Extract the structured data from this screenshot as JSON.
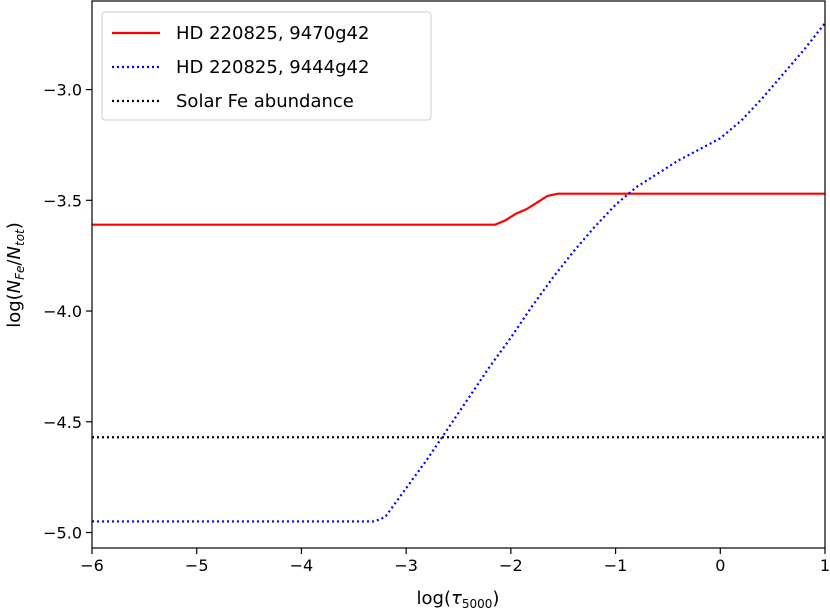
{
  "chart_data": {
    "type": "line",
    "xlabel": "log(τ5000)",
    "ylabel": "log(NFe/Ntot)",
    "xlim": [
      -6,
      1
    ],
    "ylim": [
      -5.07,
      -2.6
    ],
    "x_ticks": [
      -6,
      -5,
      -4,
      -3,
      -2,
      -1,
      0,
      1
    ],
    "y_ticks": [
      -5.0,
      -4.5,
      -4.0,
      -3.5,
      -3.0
    ],
    "x_tick_labels": [
      "−6",
      "−5",
      "−4",
      "−3",
      "−2",
      "−1",
      "0",
      "1"
    ],
    "y_tick_labels": [
      "−5.0",
      "−4.5",
      "−4.0",
      "−3.5",
      "−3.0"
    ],
    "grid": false,
    "legend_position": "top-left",
    "series": [
      {
        "name": "HD 220825, 9470g42",
        "color": "#ff0000",
        "style": "solid",
        "x": [
          -6,
          -2.15,
          -2.05,
          -1.95,
          -1.85,
          -1.75,
          -1.65,
          -1.55,
          0,
          1
        ],
        "y": [
          -3.61,
          -3.61,
          -3.59,
          -3.56,
          -3.54,
          -3.51,
          -3.48,
          -3.47,
          -3.47,
          -3.47
        ]
      },
      {
        "name": "HD 220825, 9444g42",
        "color": "#0000ff",
        "style": "dotted",
        "x": [
          -6,
          -3.3,
          -3.2,
          -3.0,
          -2.8,
          -2.6,
          -2.4,
          -2.2,
          -2.0,
          -1.8,
          -1.6,
          -1.4,
          -1.2,
          -1.0,
          -0.8,
          -0.6,
          -0.4,
          -0.2,
          0.0,
          0.2,
          0.4,
          0.6,
          0.8,
          1.0
        ],
        "y": [
          -4.95,
          -4.95,
          -4.93,
          -4.8,
          -4.67,
          -4.53,
          -4.39,
          -4.25,
          -4.12,
          -3.98,
          -3.85,
          -3.73,
          -3.62,
          -3.52,
          -3.44,
          -3.38,
          -3.32,
          -3.27,
          -3.22,
          -3.14,
          -3.04,
          -2.93,
          -2.82,
          -2.7
        ]
      },
      {
        "name": "Solar Fe abundance",
        "color": "#000000",
        "style": "dotted",
        "x": [
          -6,
          1
        ],
        "y": [
          -4.57,
          -4.57
        ]
      }
    ]
  }
}
